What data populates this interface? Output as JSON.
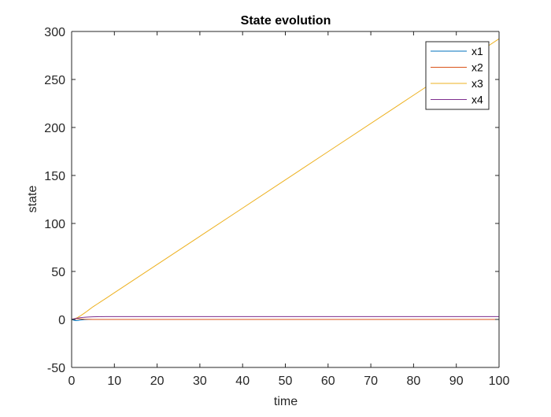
{
  "chart_data": {
    "type": "line",
    "title": "State evolution",
    "xlabel": "time",
    "ylabel": "state",
    "xlim": [
      0,
      100
    ],
    "ylim": [
      -50,
      300
    ],
    "xticks": [
      0,
      10,
      20,
      30,
      40,
      50,
      60,
      70,
      80,
      90,
      100
    ],
    "yticks": [
      -50,
      0,
      50,
      100,
      150,
      200,
      250,
      300
    ],
    "xtick_labels": [
      "0",
      "10",
      "20",
      "30",
      "40",
      "50",
      "60",
      "70",
      "80",
      "90",
      "100"
    ],
    "ytick_labels": [
      "-50",
      "0",
      "50",
      "100",
      "150",
      "200",
      "250",
      "300"
    ],
    "grid": false,
    "legend_position": "top-right",
    "series": [
      {
        "name": "x1",
        "color": "#0072BD",
        "x": [
          0,
          0.5,
          1,
          1.5,
          2,
          3,
          4,
          6,
          10,
          100
        ],
        "y": [
          0,
          -0.8,
          -1.2,
          -1.0,
          -0.6,
          -0.2,
          0,
          0,
          0,
          0
        ]
      },
      {
        "name": "x2",
        "color": "#D95319",
        "x": [
          0,
          0.5,
          1,
          2,
          3,
          5,
          10,
          100
        ],
        "y": [
          0,
          0.6,
          0.8,
          0.5,
          0.2,
          0,
          0,
          0
        ]
      },
      {
        "name": "x3",
        "color": "#EDB120",
        "x": [
          0,
          0.5,
          1,
          1.5,
          2,
          2.5,
          3,
          3.5,
          4,
          5,
          6,
          8,
          10,
          20,
          40,
          60,
          80,
          100
        ],
        "y": [
          0,
          0.4,
          1.2,
          2.3,
          3.6,
          5.1,
          6.6,
          8.2,
          9.9,
          13.2,
          16.1,
          21.9,
          27.8,
          57.2,
          116.0,
          174.8,
          233.6,
          292.4
        ]
      },
      {
        "name": "x4",
        "color": "#7E2F8E",
        "x": [
          0,
          1,
          2,
          3,
          4,
          5,
          6,
          8,
          10,
          100
        ],
        "y": [
          0,
          1.0,
          1.8,
          2.3,
          2.6,
          2.8,
          2.9,
          2.95,
          3.0,
          3.0
        ]
      }
    ]
  }
}
